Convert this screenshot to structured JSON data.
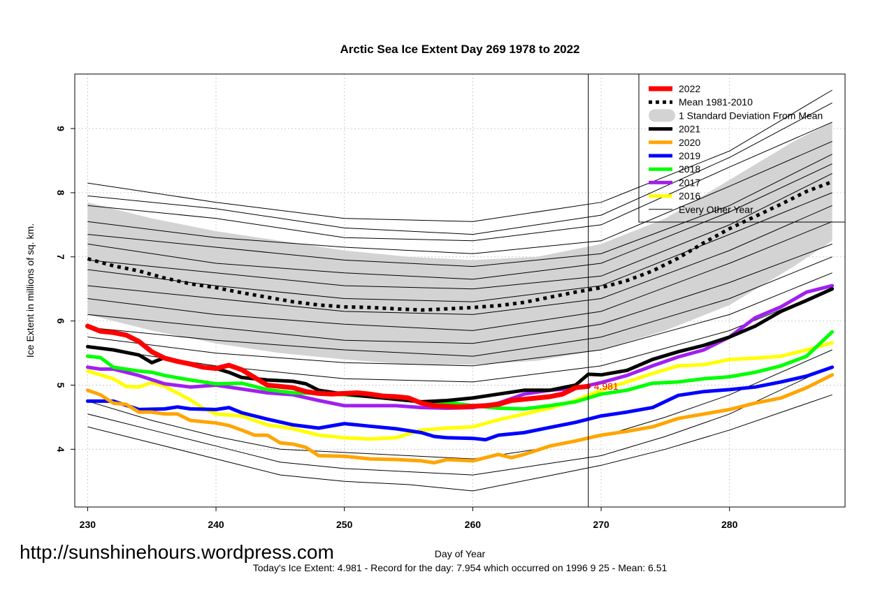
{
  "watermark": "http://sunshinehours.wordpress.com",
  "footer_text": "Today's Ice Extent: 4.981  - Record for the day: 7.954 which occurred on 1996 9 25  - Mean: 6.51",
  "colors": {
    "y2022": "#ff0000",
    "mean": "#000000",
    "sd_band": "#d3d3d3",
    "y2021": "#000000",
    "y2020": "#ffa500",
    "y2019": "#0000ff",
    "y2018": "#00ff00",
    "y2017": "#a020f0",
    "y2016": "#ffff00",
    "other": "#000000"
  },
  "chart_data": {
    "type": "line",
    "title": "Arctic Sea Ice Extent Day 269 1978 to 2022",
    "xlabel": "Day of Year",
    "ylabel": "Ice Extent in millions of sq. km.",
    "xlim": [
      229,
      289
    ],
    "ylim": [
      3.1,
      9.85
    ],
    "x_ticks": [
      "230",
      "240",
      "250",
      "260",
      "270",
      "280"
    ],
    "y_ticks": [
      "4",
      "5",
      "6",
      "7",
      "8",
      "9"
    ],
    "grid": true,
    "marker_day": 269,
    "end_label": {
      "x": 269,
      "y": 4.981,
      "text": "4.981"
    },
    "legend_position": "top-right",
    "legend": [
      "2022",
      "Mean 1981-2010",
      "1 Standard Deviation From Mean",
      "2021",
      "2020",
      "2019",
      "2018",
      "2017",
      "2016",
      "Every Other Year"
    ],
    "sd_band": {
      "x": [
        230,
        235,
        240,
        245,
        250,
        255,
        260,
        265,
        270,
        275,
        280,
        285,
        288
      ],
      "upper": [
        7.85,
        7.6,
        7.4,
        7.25,
        7.1,
        7.0,
        6.95,
        7.0,
        7.2,
        7.6,
        8.2,
        8.8,
        9.1
      ],
      "lower": [
        6.1,
        5.85,
        5.65,
        5.5,
        5.4,
        5.32,
        5.32,
        5.38,
        5.55,
        5.85,
        6.25,
        6.85,
        7.25
      ]
    },
    "series": [
      {
        "name": "2022",
        "color_key": "y2022",
        "width": 7,
        "x": [
          230,
          231,
          232,
          233,
          234,
          235,
          236,
          237,
          238,
          239,
          240,
          241,
          242,
          243,
          244,
          245,
          246,
          247,
          248,
          249,
          250,
          251,
          252,
          253,
          254,
          255,
          256,
          257,
          258,
          259,
          260,
          261,
          262,
          263,
          264,
          265,
          266,
          267,
          268,
          269
        ],
        "y": [
          5.92,
          5.84,
          5.82,
          5.78,
          5.68,
          5.52,
          5.42,
          5.37,
          5.33,
          5.28,
          5.26,
          5.31,
          5.24,
          5.12,
          5.0,
          4.98,
          4.96,
          4.9,
          4.87,
          4.86,
          4.87,
          4.88,
          4.86,
          4.83,
          4.82,
          4.8,
          4.72,
          4.68,
          4.67,
          4.66,
          4.67,
          4.68,
          4.7,
          4.76,
          4.78,
          4.8,
          4.82,
          4.86,
          4.96,
          4.981
        ]
      },
      {
        "name": "Mean 1981-2010",
        "color_key": "mean",
        "width": 5,
        "dash": "5,6",
        "x": [
          230,
          232,
          234,
          236,
          238,
          240,
          242,
          244,
          246,
          248,
          250,
          252,
          254,
          256,
          258,
          260,
          262,
          264,
          266,
          268,
          270,
          272,
          274,
          276,
          278,
          280,
          282,
          284,
          286,
          288
        ],
        "y": [
          6.97,
          6.86,
          6.78,
          6.67,
          6.58,
          6.52,
          6.44,
          6.37,
          6.3,
          6.25,
          6.22,
          6.21,
          6.19,
          6.17,
          6.19,
          6.21,
          6.24,
          6.29,
          6.37,
          6.45,
          6.52,
          6.63,
          6.78,
          6.98,
          7.22,
          7.44,
          7.63,
          7.82,
          8.02,
          8.17
        ]
      },
      {
        "name": "2021",
        "color_key": "y2021",
        "width": 5,
        "x": [
          230,
          232,
          234,
          235,
          236,
          238,
          240,
          241,
          242,
          244,
          246,
          247,
          248,
          250,
          252,
          254,
          256,
          258,
          260,
          262,
          264,
          266,
          268,
          269,
          270,
          272,
          274,
          276,
          278,
          280,
          282,
          284,
          286,
          288
        ],
        "y": [
          5.6,
          5.55,
          5.47,
          5.35,
          5.43,
          5.32,
          5.26,
          5.2,
          5.12,
          5.08,
          5.06,
          5.02,
          4.92,
          4.86,
          4.82,
          4.78,
          4.74,
          4.76,
          4.8,
          4.86,
          4.92,
          4.92,
          5.0,
          5.17,
          5.16,
          5.23,
          5.4,
          5.52,
          5.62,
          5.75,
          5.92,
          6.15,
          6.32,
          6.5
        ]
      },
      {
        "name": "2020",
        "color_key": "y2020",
        "width": 5,
        "x": [
          230,
          231,
          232,
          233,
          234,
          235,
          236,
          237,
          238,
          240,
          241,
          242,
          243,
          244,
          245,
          246,
          247,
          248,
          250,
          252,
          254,
          256,
          257,
          258,
          260,
          262,
          263,
          264,
          266,
          268,
          270,
          272,
          274,
          276,
          278,
          280,
          282,
          284,
          286,
          288
        ],
        "y": [
          4.92,
          4.85,
          4.72,
          4.7,
          4.58,
          4.58,
          4.55,
          4.55,
          4.45,
          4.41,
          4.37,
          4.3,
          4.22,
          4.22,
          4.1,
          4.08,
          4.03,
          3.9,
          3.89,
          3.85,
          3.84,
          3.82,
          3.79,
          3.84,
          3.82,
          3.92,
          3.87,
          3.92,
          4.05,
          4.13,
          4.22,
          4.28,
          4.35,
          4.48,
          4.55,
          4.62,
          4.72,
          4.8,
          4.96,
          5.16
        ]
      },
      {
        "name": "2019",
        "color_key": "y2019",
        "width": 5,
        "x": [
          230,
          232,
          234,
          236,
          237,
          238,
          240,
          241,
          242,
          244,
          246,
          248,
          250,
          252,
          254,
          256,
          257,
          258,
          260,
          261,
          262,
          264,
          266,
          268,
          270,
          272,
          274,
          276,
          278,
          280,
          282,
          284,
          286,
          288
        ],
        "y": [
          4.75,
          4.75,
          4.62,
          4.63,
          4.66,
          4.63,
          4.62,
          4.65,
          4.57,
          4.47,
          4.38,
          4.33,
          4.4,
          4.36,
          4.32,
          4.26,
          4.2,
          4.18,
          4.17,
          4.15,
          4.22,
          4.26,
          4.34,
          4.42,
          4.52,
          4.58,
          4.65,
          4.84,
          4.9,
          4.93,
          4.97,
          5.05,
          5.14,
          5.28
        ]
      },
      {
        "name": "2018",
        "color_key": "y2018",
        "width": 5,
        "x": [
          230,
          231,
          232,
          234,
          235,
          236,
          238,
          240,
          242,
          244,
          246,
          248,
          250,
          252,
          254,
          256,
          258,
          260,
          262,
          264,
          266,
          268,
          270,
          272,
          274,
          276,
          278,
          280,
          282,
          284,
          286,
          288
        ],
        "y": [
          5.45,
          5.43,
          5.28,
          5.22,
          5.2,
          5.15,
          5.08,
          5.02,
          5.03,
          4.93,
          4.88,
          4.87,
          4.85,
          4.82,
          4.8,
          4.74,
          4.73,
          4.68,
          4.64,
          4.63,
          4.68,
          4.74,
          4.86,
          4.92,
          5.03,
          5.05,
          5.1,
          5.13,
          5.2,
          5.3,
          5.45,
          5.83
        ]
      },
      {
        "name": "2017",
        "color_key": "y2017",
        "width": 5,
        "x": [
          230,
          231,
          232,
          234,
          236,
          238,
          240,
          242,
          244,
          246,
          248,
          250,
          252,
          254,
          256,
          258,
          260,
          262,
          264,
          266,
          268,
          270,
          272,
          274,
          276,
          278,
          280,
          282,
          284,
          286,
          288
        ],
        "y": [
          5.28,
          5.25,
          5.25,
          5.15,
          5.02,
          4.97,
          5.0,
          4.94,
          4.88,
          4.85,
          4.76,
          4.68,
          4.68,
          4.68,
          4.65,
          4.64,
          4.65,
          4.72,
          4.86,
          4.92,
          4.95,
          5.04,
          5.15,
          5.3,
          5.44,
          5.55,
          5.75,
          6.05,
          6.22,
          6.45,
          6.55
        ]
      },
      {
        "name": "2016",
        "color_key": "y2016",
        "width": 5,
        "x": [
          230,
          232,
          233,
          234,
          235,
          236,
          238,
          239,
          240,
          242,
          244,
          246,
          248,
          250,
          252,
          254,
          256,
          258,
          260,
          262,
          264,
          266,
          268,
          270,
          272,
          274,
          276,
          278,
          280,
          282,
          284,
          286,
          288
        ],
        "y": [
          5.22,
          5.1,
          4.98,
          4.97,
          5.04,
          4.98,
          4.77,
          4.64,
          4.55,
          4.52,
          4.38,
          4.32,
          4.22,
          4.18,
          4.16,
          4.18,
          4.3,
          4.33,
          4.35,
          4.46,
          4.55,
          4.64,
          4.76,
          4.92,
          5.05,
          5.18,
          5.3,
          5.32,
          5.4,
          5.42,
          5.45,
          5.55,
          5.66
        ]
      }
    ],
    "other_years": [
      {
        "x": [
          230,
          240,
          250,
          260,
          270,
          280,
          288
        ],
        "y": [
          8.15,
          7.85,
          7.6,
          7.55,
          7.85,
          8.65,
          9.6
        ]
      },
      {
        "x": [
          230,
          240,
          250,
          260,
          270,
          280,
          288
        ],
        "y": [
          7.95,
          7.75,
          7.45,
          7.35,
          7.65,
          8.55,
          9.4
        ]
      },
      {
        "x": [
          230,
          240,
          250,
          260,
          270,
          280,
          288
        ],
        "y": [
          7.8,
          7.6,
          7.3,
          7.25,
          7.5,
          8.4,
          9.1
        ]
      },
      {
        "x": [
          230,
          240,
          250,
          260,
          270,
          280,
          288
        ],
        "y": [
          7.55,
          7.3,
          7.15,
          7.05,
          7.25,
          8.1,
          8.8
        ]
      },
      {
        "x": [
          230,
          240,
          250,
          260,
          270,
          280,
          288
        ],
        "y": [
          7.35,
          7.15,
          6.95,
          6.85,
          7.05,
          7.8,
          8.6
        ]
      },
      {
        "x": [
          230,
          240,
          250,
          260,
          270,
          280,
          288
        ],
        "y": [
          7.2,
          6.9,
          6.75,
          6.65,
          6.9,
          7.7,
          8.45
        ]
      },
      {
        "x": [
          230,
          240,
          250,
          260,
          270,
          280,
          288
        ],
        "y": [
          6.95,
          6.75,
          6.55,
          6.5,
          6.7,
          7.5,
          8.3
        ]
      },
      {
        "x": [
          230,
          240,
          250,
          260,
          270,
          280,
          288
        ],
        "y": [
          6.8,
          6.55,
          6.35,
          6.3,
          6.55,
          7.35,
          8.0
        ]
      },
      {
        "x": [
          230,
          240,
          250,
          260,
          270,
          280,
          288
        ],
        "y": [
          6.55,
          6.35,
          6.15,
          6.1,
          6.35,
          7.1,
          7.8
        ]
      },
      {
        "x": [
          230,
          240,
          250,
          260,
          270,
          280,
          288
        ],
        "y": [
          6.35,
          6.1,
          5.95,
          5.85,
          6.15,
          6.9,
          7.55
        ]
      },
      {
        "x": [
          230,
          240,
          250,
          260,
          270,
          280,
          288
        ],
        "y": [
          6.1,
          5.9,
          5.7,
          5.65,
          5.95,
          6.6,
          7.2
        ]
      },
      {
        "x": [
          230,
          240,
          250,
          260,
          270,
          280,
          288
        ],
        "y": [
          5.9,
          5.7,
          5.55,
          5.45,
          5.75,
          6.35,
          7.0
        ]
      },
      {
        "x": [
          230,
          240,
          250,
          260,
          270,
          280,
          288
        ],
        "y": [
          5.75,
          5.5,
          5.35,
          5.3,
          5.55,
          6.1,
          6.75
        ]
      },
      {
        "x": [
          230,
          240,
          250,
          260,
          270,
          280,
          288
        ],
        "y": [
          5.6,
          5.3,
          5.1,
          5.05,
          5.3,
          5.85,
          6.5
        ]
      },
      {
        "x": [
          230,
          235,
          240,
          245,
          250,
          255,
          260,
          265,
          270,
          275,
          280,
          288
        ],
        "y": [
          4.55,
          4.3,
          4.05,
          3.8,
          3.7,
          3.65,
          3.6,
          3.75,
          3.9,
          4.2,
          4.55,
          5.3
        ]
      },
      {
        "x": [
          230,
          235,
          240,
          245,
          250,
          255,
          260,
          265,
          270,
          275,
          280,
          288
        ],
        "y": [
          4.35,
          4.1,
          3.85,
          3.6,
          3.5,
          3.45,
          3.35,
          3.55,
          3.75,
          4.0,
          4.3,
          4.85
        ]
      },
      {
        "x": [
          230,
          235,
          240,
          245,
          250,
          255,
          260,
          265,
          270,
          275,
          280,
          288
        ],
        "y": [
          4.75,
          4.45,
          4.2,
          4.0,
          3.95,
          3.9,
          3.85,
          4.0,
          4.2,
          4.5,
          4.85,
          5.55
        ]
      }
    ]
  }
}
